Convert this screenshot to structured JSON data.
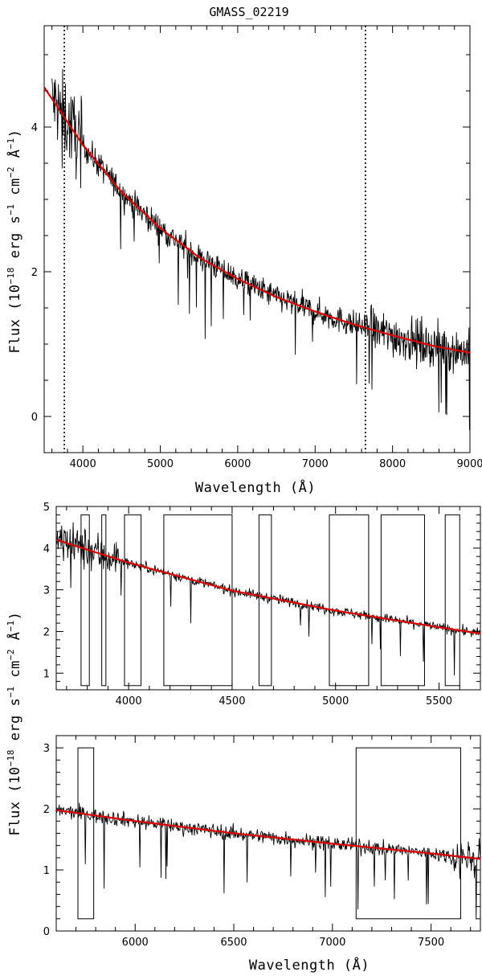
{
  "chart_data": [
    {
      "type": "line",
      "title": "GMASS_02219",
      "xlabel": "Wavelength (Å)",
      "ylabel_base": "Flux (10",
      "ylabel_exp1": "−18",
      "ylabel_mid1": " erg s",
      "ylabel_exp2": "−1",
      "ylabel_mid2": " cm",
      "ylabel_exp3": "−2",
      "ylabel_mid3": " Å",
      "ylabel_exp4": "−1",
      "ylabel_end": ")",
      "xlim": [
        3500,
        9000
      ],
      "ylim": [
        -0.5,
        5.4
      ],
      "xticks": [
        4000,
        5000,
        6000,
        7000,
        8000,
        9000
      ],
      "xtick_labels": [
        "4000",
        "5000",
        "6000",
        "7000",
        "8000",
        "9000"
      ],
      "yticks": [
        0,
        2,
        4
      ],
      "ytick_labels": [
        "0",
        "2",
        "4"
      ],
      "vlines": [
        3760,
        7650
      ],
      "series": [
        {
          "name": "observed spectrum",
          "x_start": 3600,
          "x_end": 9000
        },
        {
          "name": "model continuum fit",
          "color": "#e00000",
          "x": [
            3500,
            4000,
            4500,
            5000,
            5500,
            6000,
            6500,
            7000,
            7500,
            8000,
            8500,
            9000
          ],
          "y": [
            4.55,
            3.75,
            3.1,
            2.6,
            2.2,
            1.9,
            1.65,
            1.45,
            1.27,
            1.12,
            0.98,
            0.88
          ]
        }
      ]
    },
    {
      "type": "line",
      "title": "",
      "xlabel": "",
      "xlim": [
        3650,
        5700
      ],
      "ylim": [
        0.6,
        5.0
      ],
      "xticks": [
        4000,
        4500,
        5000,
        5500
      ],
      "xtick_labels": [
        "4000",
        "4500",
        "5000",
        "5500"
      ],
      "yticks": [
        1,
        2,
        3,
        4,
        5
      ],
      "ytick_labels": [
        "1",
        "2",
        "3",
        "4",
        "5"
      ],
      "windows": [
        [
          3770,
          3810
        ],
        [
          3870,
          3890
        ],
        [
          3980,
          4060
        ],
        [
          4170,
          4500
        ],
        [
          4630,
          4690
        ],
        [
          4970,
          5160
        ],
        [
          5220,
          5430
        ],
        [
          5530,
          5600
        ]
      ],
      "window_y": [
        0.7,
        4.8
      ],
      "series": [
        {
          "name": "observed spectrum",
          "x_start": 3650,
          "x_end": 5700
        },
        {
          "name": "model continuum fit",
          "color": "#e00000",
          "x": [
            3650,
            4000,
            4500,
            5000,
            5500,
            5700
          ],
          "y": [
            4.2,
            3.65,
            2.98,
            2.5,
            2.1,
            1.95
          ]
        }
      ]
    },
    {
      "type": "line",
      "title": "",
      "xlabel": "Wavelength (Å)",
      "xlim": [
        5600,
        7750
      ],
      "ylim": [
        0.0,
        3.2
      ],
      "xticks": [
        6000,
        6500,
        7000,
        7500
      ],
      "xtick_labels": [
        "6000",
        "6500",
        "7000",
        "7500"
      ],
      "yticks": [
        0,
        1,
        2,
        3
      ],
      "ytick_labels": [
        "0",
        "1",
        "2",
        "3"
      ],
      "windows": [
        [
          5710,
          5790
        ],
        [
          7120,
          7650
        ]
      ],
      "window_y": [
        0.2,
        3.0
      ],
      "series": [
        {
          "name": "observed spectrum",
          "x_start": 5600,
          "x_end": 7750
        },
        {
          "name": "model continuum fit",
          "color": "#e00000",
          "x": [
            5600,
            6000,
            6500,
            7000,
            7500,
            7750
          ],
          "y": [
            1.98,
            1.8,
            1.6,
            1.43,
            1.27,
            1.18
          ]
        }
      ]
    }
  ],
  "shared_ylabel": {
    "base": "Flux (10",
    "exp1": "−18",
    "mid1": " erg s",
    "exp2": "−1",
    "mid2": " cm",
    "exp3": "−2",
    "mid3": " Å",
    "exp4": "−1",
    "end": ")"
  }
}
